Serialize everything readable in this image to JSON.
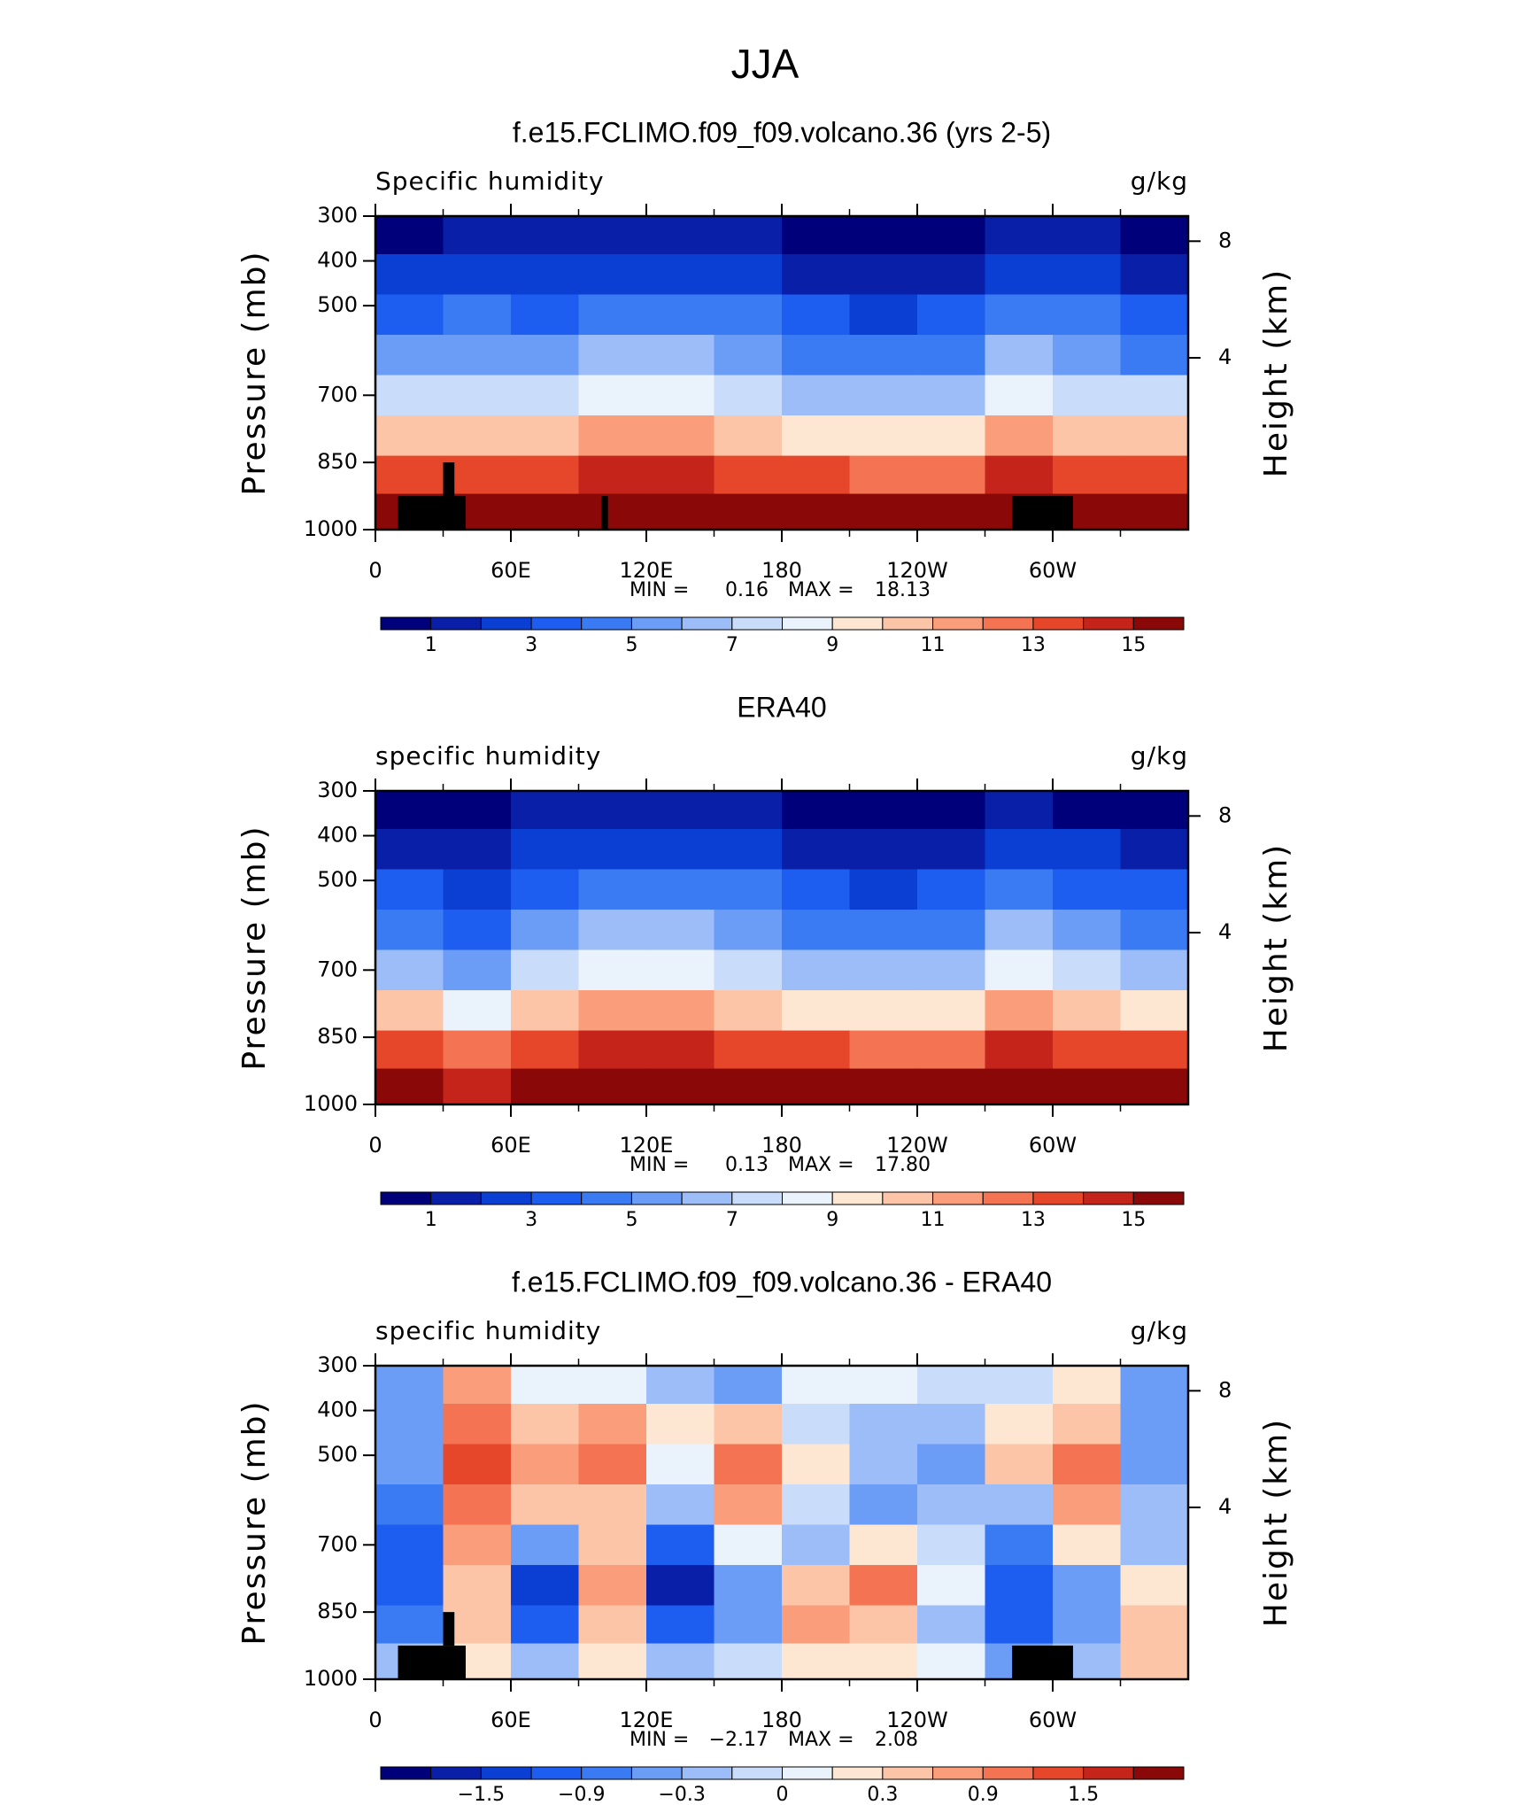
{
  "title": "JJA",
  "chart_data": [
    {
      "type": "contour",
      "title": "f.e15.FCLIMO.f09_f09.volcano.36 (yrs 2-5)",
      "left_label": "Specific humidity",
      "units": "g/kg",
      "ylabel": "Pressure (mb)",
      "y2label": "Height (km)",
      "xlim": [
        0,
        360
      ],
      "xticks": [
        0,
        {
          "value": 60,
          "label": "60E"
        },
        {
          "value": 120,
          "label": "120E"
        },
        180,
        {
          "value": 240,
          "label": "120W"
        },
        {
          "value": 300,
          "label": "60W"
        }
      ],
      "ylim": [
        1000,
        300
      ],
      "yticks": [
        300,
        400,
        500,
        700,
        850,
        1000
      ],
      "y2ticks": [
        8,
        4
      ],
      "min_label": "MIN =",
      "min": 0.16,
      "max_label": "MAX =",
      "max": 18.13,
      "topography": true,
      "x": [
        15,
        45,
        75,
        105,
        135,
        165,
        195,
        225,
        255,
        285,
        315,
        345
      ],
      "y": [
        340,
        430,
        520,
        610,
        700,
        790,
        880,
        960
      ],
      "z": [
        [
          0.8,
          1.2,
          1.0,
          1.3,
          1.3,
          1.0,
          0.7,
          0.5,
          0.6,
          1.2,
          1.0,
          0.7
        ],
        [
          2.0,
          2.5,
          2.0,
          2.8,
          2.8,
          2.3,
          1.5,
          1.2,
          1.5,
          2.8,
          2.3,
          1.8
        ],
        [
          3.5,
          4.0,
          3.5,
          4.5,
          4.5,
          4.0,
          3.0,
          2.5,
          3.0,
          4.5,
          4.0,
          3.2
        ],
        [
          5.0,
          5.5,
          5.0,
          6.0,
          6.0,
          5.5,
          4.5,
          4.0,
          4.5,
          6.0,
          5.5,
          4.8
        ],
        [
          7.0,
          7.5,
          7.0,
          8.0,
          8.0,
          7.5,
          6.5,
          6.0,
          6.5,
          8.0,
          7.5,
          7.0
        ],
        [
          10.0,
          10.5,
          10.0,
          11.0,
          11.0,
          10.5,
          9.5,
          9.0,
          9.5,
          11.0,
          10.5,
          10.0
        ],
        [
          13.0,
          13.0,
          13.0,
          14.0,
          14.0,
          13.5,
          13.0,
          12.5,
          12.5,
          14.0,
          13.5,
          13.0
        ],
        [
          15.0,
          15.0,
          16.0,
          17.0,
          17.0,
          17.0,
          16.0,
          15.5,
          15.0,
          16.0,
          16.0,
          15.5
        ]
      ],
      "levels": [
        1,
        2,
        3,
        4,
        5,
        6,
        7,
        8,
        9,
        10,
        11,
        12,
        13,
        14,
        15
      ],
      "colors": [
        "#00007a",
        "#0a1fa8",
        "#0b3fd4",
        "#1d5df0",
        "#3a7bf4",
        "#6b9cf6",
        "#9cbdf7",
        "#c9dcf9",
        "#eaf2fb",
        "#fde6d2",
        "#fcc5a8",
        "#f99d7b",
        "#f37352",
        "#e6472b",
        "#c4241a",
        "#8a0808"
      ],
      "colorbar_ticks": [
        1,
        3,
        5,
        7,
        9,
        11,
        13,
        15
      ]
    },
    {
      "type": "contour",
      "title": "ERA40",
      "left_label": "specific humidity",
      "units": "g/kg",
      "ylabel": "Pressure (mb)",
      "y2label": "Height (km)",
      "xlim": [
        0,
        360
      ],
      "xticks": [
        0,
        {
          "value": 60,
          "label": "60E"
        },
        {
          "value": 120,
          "label": "120E"
        },
        180,
        {
          "value": 240,
          "label": "120W"
        },
        {
          "value": 300,
          "label": "60W"
        }
      ],
      "ylim": [
        1000,
        300
      ],
      "yticks": [
        300,
        400,
        500,
        700,
        850,
        1000
      ],
      "y2ticks": [
        8,
        4
      ],
      "min_label": "MIN =",
      "min": 0.13,
      "max_label": "MAX =",
      "max": {
        "value": 17.8,
        "label": "17.80"
      },
      "topography": false,
      "x": [
        15,
        45,
        75,
        105,
        135,
        165,
        195,
        225,
        255,
        285,
        315,
        345
      ],
      "y": [
        340,
        430,
        520,
        610,
        700,
        790,
        880,
        960
      ],
      "z": [
        [
          0.8,
          0.6,
          1.0,
          1.3,
          1.4,
          1.1,
          0.7,
          0.5,
          0.7,
          1.3,
          0.9,
          0.6
        ],
        [
          1.8,
          1.2,
          2.2,
          2.8,
          2.9,
          2.4,
          1.6,
          1.2,
          1.6,
          2.8,
          2.1,
          1.6
        ],
        [
          3.2,
          2.2,
          3.8,
          4.5,
          4.6,
          4.1,
          3.1,
          2.6,
          3.1,
          4.5,
          3.8,
          3.0
        ],
        [
          4.8,
          3.5,
          5.3,
          6.0,
          6.1,
          5.6,
          4.6,
          4.1,
          4.6,
          6.0,
          5.3,
          4.6
        ],
        [
          6.8,
          5.0,
          7.3,
          8.0,
          8.1,
          7.6,
          6.6,
          6.1,
          6.6,
          8.2,
          7.3,
          6.8
        ],
        [
          10.0,
          8.0,
          10.5,
          11.2,
          11.2,
          10.6,
          9.6,
          9.1,
          9.6,
          11.2,
          10.3,
          9.8
        ],
        [
          13.5,
          12.0,
          13.5,
          14.2,
          14.2,
          13.8,
          13.2,
          12.8,
          12.8,
          14.0,
          13.5,
          13.0
        ],
        [
          15.5,
          14.5,
          16.5,
          17.0,
          17.2,
          17.2,
          16.5,
          16.0,
          15.5,
          16.5,
          16.2,
          15.5
        ]
      ],
      "levels": [
        1,
        2,
        3,
        4,
        5,
        6,
        7,
        8,
        9,
        10,
        11,
        12,
        13,
        14,
        15
      ],
      "colors": [
        "#00007a",
        "#0a1fa8",
        "#0b3fd4",
        "#1d5df0",
        "#3a7bf4",
        "#6b9cf6",
        "#9cbdf7",
        "#c9dcf9",
        "#eaf2fb",
        "#fde6d2",
        "#fcc5a8",
        "#f99d7b",
        "#f37352",
        "#e6472b",
        "#c4241a",
        "#8a0808"
      ],
      "colorbar_ticks": [
        1,
        3,
        5,
        7,
        9,
        11,
        13,
        15
      ]
    },
    {
      "type": "contour",
      "title": "f.e15.FCLIMO.f09_f09.volcano.36 - ERA40",
      "left_label": "specific humidity",
      "units": "g/kg",
      "ylabel": "Pressure (mb)",
      "y2label": "Height (km)",
      "xlim": [
        0,
        360
      ],
      "xticks": [
        0,
        {
          "value": 60,
          "label": "60E"
        },
        {
          "value": 120,
          "label": "120E"
        },
        180,
        {
          "value": 240,
          "label": "120W"
        },
        {
          "value": 300,
          "label": "60W"
        }
      ],
      "ylim": [
        1000,
        300
      ],
      "yticks": [
        300,
        400,
        500,
        700,
        850,
        1000
      ],
      "y2ticks": [
        8,
        4
      ],
      "min_label": "MIN =",
      "min": {
        "value": -2.17,
        "label": "−2.17"
      },
      "max_label": "MAX =",
      "max": 2.08,
      "topography": true,
      "x": [
        15,
        45,
        75,
        105,
        135,
        165,
        195,
        225,
        255,
        285,
        315,
        345
      ],
      "y": [
        340,
        430,
        520,
        610,
        700,
        790,
        880,
        960
      ],
      "z": [
        [
          -0.4,
          0.6,
          0.0,
          0.0,
          -0.2,
          -0.4,
          0.0,
          0.0,
          -0.1,
          -0.1,
          0.1,
          -0.4
        ],
        [
          -0.5,
          1.0,
          0.5,
          0.8,
          0.2,
          0.4,
          -0.1,
          -0.2,
          -0.3,
          0.2,
          0.5,
          -0.4
        ],
        [
          -0.6,
          1.2,
          0.8,
          1.0,
          0.0,
          0.9,
          0.1,
          -0.3,
          -0.4,
          0.3,
          0.9,
          -0.5
        ],
        [
          -0.8,
          1.0,
          0.4,
          0.4,
          -0.2,
          0.8,
          -0.1,
          -0.4,
          -0.3,
          -0.2,
          0.7,
          -0.3
        ],
        [
          -1.0,
          0.6,
          -0.6,
          0.5,
          -1.0,
          0.0,
          -0.3,
          0.1,
          -0.1,
          -0.7,
          0.1,
          -0.2
        ],
        [
          -1.2,
          0.4,
          -1.5,
          0.8,
          -1.8,
          -0.6,
          0.3,
          0.9,
          0.0,
          -1.2,
          -0.4,
          0.2
        ],
        [
          -0.8,
          0.3,
          -1.0,
          0.3,
          -1.2,
          -0.4,
          0.6,
          0.5,
          -0.2,
          -1.0,
          -0.6,
          0.5
        ],
        [
          -0.3,
          0.2,
          -0.2,
          0.2,
          -0.3,
          -0.1,
          0.2,
          0.1,
          0.0,
          -0.4,
          -0.2,
          0.3
        ]
      ],
      "levels": [
        -1.8,
        -1.5,
        -1.2,
        -0.9,
        -0.6,
        -0.3,
        -0.1,
        0,
        0.1,
        0.3,
        0.6,
        0.9,
        1.2,
        1.5,
        1.8
      ],
      "colors": [
        "#00007a",
        "#0a1fa8",
        "#0b3fd4",
        "#1d5df0",
        "#3a7bf4",
        "#6b9cf6",
        "#9cbdf7",
        "#c9dcf9",
        "#eaf2fb",
        "#fde6d2",
        "#fcc5a8",
        "#f99d7b",
        "#f37352",
        "#e6472b",
        "#c4241a",
        "#8a0808"
      ],
      "colorbar_ticks": [
        {
          "value": -1.5,
          "label": "−1.5"
        },
        {
          "value": -0.9,
          "label": "−0.9"
        },
        {
          "value": -0.3,
          "label": "−0.3"
        },
        0,
        0.3,
        0.9,
        1.5
      ]
    }
  ]
}
